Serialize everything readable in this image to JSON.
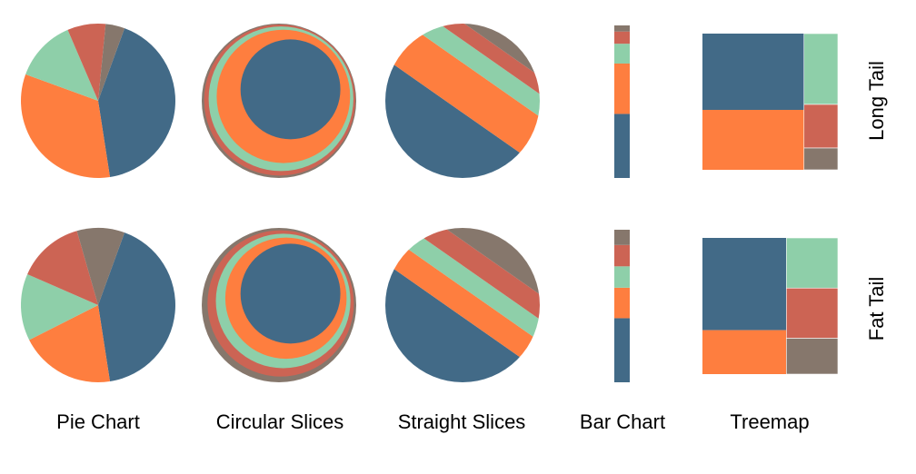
{
  "colors": {
    "blue": "#426A87",
    "orange": "#FE7E3F",
    "green": "#8ECFA9",
    "red": "#CC6454",
    "gray": "#86776C"
  },
  "column_labels": {
    "pie": "Pie Chart",
    "circular": "Circular Slices",
    "straight": "Straight Slices",
    "bar": "Bar Chart",
    "treemap": "Treemap"
  },
  "row_labels": {
    "long": "Long Tail",
    "fat": "Fat Tail"
  },
  "chart_data": [
    {
      "type": "pie",
      "name": "long-tail",
      "categories": [
        "blue",
        "orange",
        "green",
        "red",
        "gray"
      ],
      "values": [
        0.42,
        0.33,
        0.13,
        0.08,
        0.04
      ]
    },
    {
      "type": "pie",
      "name": "fat-tail",
      "categories": [
        "blue",
        "orange",
        "green",
        "red",
        "gray"
      ],
      "values": [
        0.42,
        0.2,
        0.14,
        0.14,
        0.1
      ]
    }
  ]
}
